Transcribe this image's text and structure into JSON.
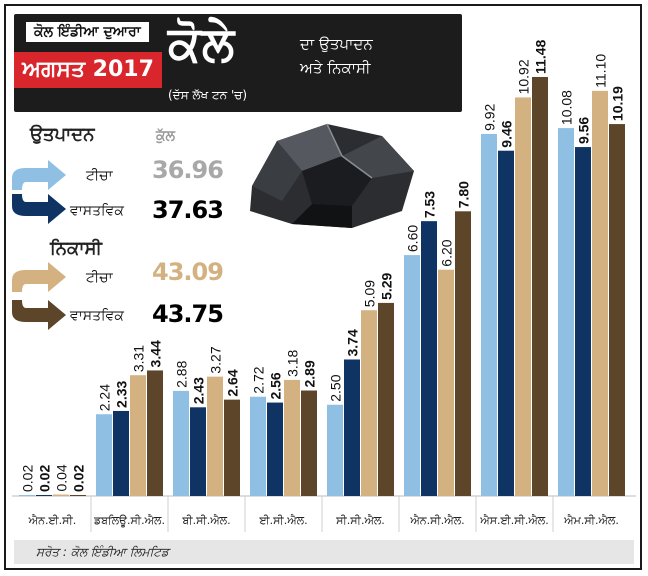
{
  "header": {
    "by_label": "ਕੋਲ ਇੰਡੀਆ ਦੁਆਰਾ",
    "month": "ਅਗਸਤ 2017",
    "title": "ਕੋਲੇ",
    "subtitle_line1": "ਦਾ ਉਤਪਾਦਨ",
    "subtitle_line2": "ਅਤੇ ਨਿਕਾਸੀ",
    "unit": "(ਦੱਸ ਲੱਖ ਟਨ 'ਚ)"
  },
  "legend": {
    "production": {
      "title": "ਉਤਪਾਦਨ",
      "total_heading": "ਕੁੱਲ",
      "target_label": "ਟੀਚਾ",
      "target_value": "36.96",
      "actual_label": "ਵਾਸਤਵਿਕ",
      "actual_value": "37.63"
    },
    "dispatch": {
      "title": "ਨਿਕਾਸੀ",
      "target_label": "ਟੀਚਾ",
      "target_value": "43.09",
      "actual_label": "ਵਾਸਤਵਿਕ",
      "actual_value": "43.75"
    }
  },
  "colors": {
    "production_target": "#8fc0e4",
    "production_actual": "#0f3362",
    "dispatch_target": "#d4b181",
    "dispatch_actual": "#5c4528"
  },
  "chart_data": {
    "type": "bar",
    "categories": [
      "ਐਨ.ਈ.ਸੀ.",
      "ਡਬਲਿਊ.ਸੀ.ਐਲ.",
      "ਬੀ.ਸੀ.ਐਲ.",
      "ਈ.ਸੀ.ਐਲ.",
      "ਸੀ.ਸੀ.ਐਲ.",
      "ਐਨ.ਸੀ.ਐਲ.",
      "ਐਸ.ਈ.ਸੀ.ਐਲ.",
      "ਐਮ.ਸੀ.ਐਲ."
    ],
    "series": [
      {
        "name": "ਉਤਪਾਦਨ ਟੀਚਾ",
        "values": [
          0.02,
          2.24,
          2.88,
          2.72,
          2.5,
          6.6,
          9.92,
          10.08
        ]
      },
      {
        "name": "ਉਤਪਾਦਨ ਵਾਸਤਵਿਕ",
        "values": [
          0.02,
          2.33,
          2.43,
          2.56,
          3.74,
          7.53,
          9.46,
          9.56
        ]
      },
      {
        "name": "ਨਿਕਾਸੀ ਟੀਚਾ",
        "values": [
          0.04,
          3.31,
          3.27,
          3.18,
          5.09,
          6.2,
          10.92,
          11.1
        ]
      },
      {
        "name": "ਨਿਕਾਸੀ ਵਾਸਤਵਿਕ",
        "values": [
          0.02,
          3.44,
          2.64,
          2.89,
          5.29,
          7.8,
          11.48,
          10.19
        ]
      }
    ],
    "ylim": [
      0,
      12
    ],
    "grid": false,
    "xlabel": "",
    "ylabel": ""
  },
  "source": "ਸਰੋਤ : ਕੋਲ ਇੰਡੀਆ ਲਿਮਟਿਡ"
}
